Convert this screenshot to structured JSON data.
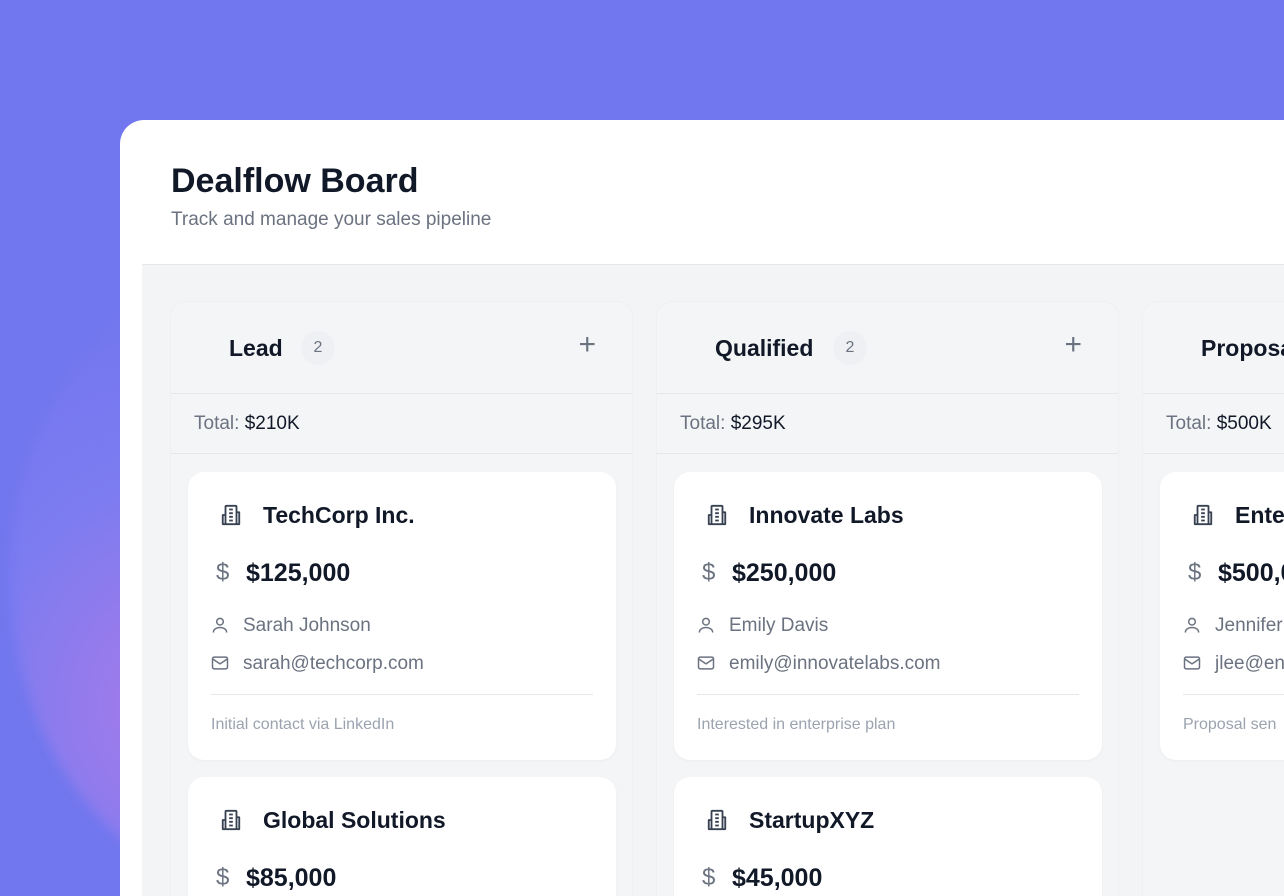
{
  "header": {
    "title": "Dealflow Board",
    "subtitle": "Track and manage your sales pipeline"
  },
  "columns": [
    {
      "name": "Lead",
      "count": "2",
      "total_label": "Total:",
      "total": "$210K",
      "deals": [
        {
          "company": "TechCorp Inc.",
          "amount": "$125,000",
          "contact": "Sarah Johnson",
          "email": "sarah@techcorp.com",
          "note": "Initial contact via LinkedIn"
        },
        {
          "company": "Global Solutions",
          "amount": "$85,000"
        }
      ]
    },
    {
      "name": "Qualified",
      "count": "2",
      "total_label": "Total:",
      "total": "$295K",
      "deals": [
        {
          "company": "Innovate Labs",
          "amount": "$250,000",
          "contact": "Emily Davis",
          "email": "emily@innovatelabs.com",
          "note": "Interested in enterprise plan"
        },
        {
          "company": "StartupXYZ",
          "amount": "$45,000"
        }
      ]
    },
    {
      "name": "Proposa",
      "total_label": "Total:",
      "total": "$500K",
      "deals": [
        {
          "company": "Ente",
          "amount": "$500,0",
          "contact": "Jennifer",
          "email": "jlee@en",
          "note": "Proposal sen"
        }
      ]
    }
  ],
  "icons": {
    "company": "building-icon",
    "amount": "dollar-icon",
    "contact": "user-icon",
    "email": "mail-icon",
    "add": "plus-icon"
  },
  "symbols": {
    "dollar": "$",
    "add": "+"
  }
}
